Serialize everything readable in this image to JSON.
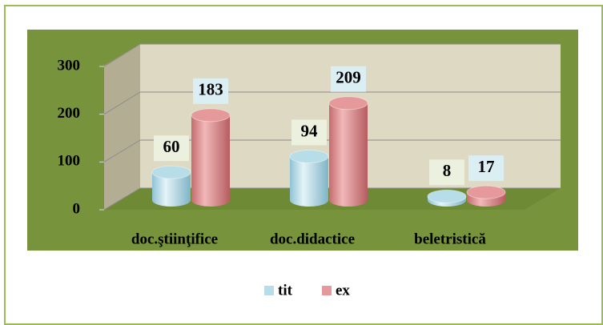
{
  "chart_data": {
    "type": "bar3d",
    "categories": [
      "doc.ştiinţifice",
      "doc.didactice",
      "beletristică"
    ],
    "series": [
      {
        "name": "tit",
        "color": "#b7dde8",
        "values": [
          60,
          94,
          8
        ]
      },
      {
        "name": "ex",
        "color": "#e6999b",
        "values": [
          183,
          209,
          17
        ]
      }
    ],
    "ylim": [
      0,
      300
    ],
    "yticks": [
      0,
      100,
      200,
      300
    ],
    "grid": true,
    "legend": "bottom"
  }
}
